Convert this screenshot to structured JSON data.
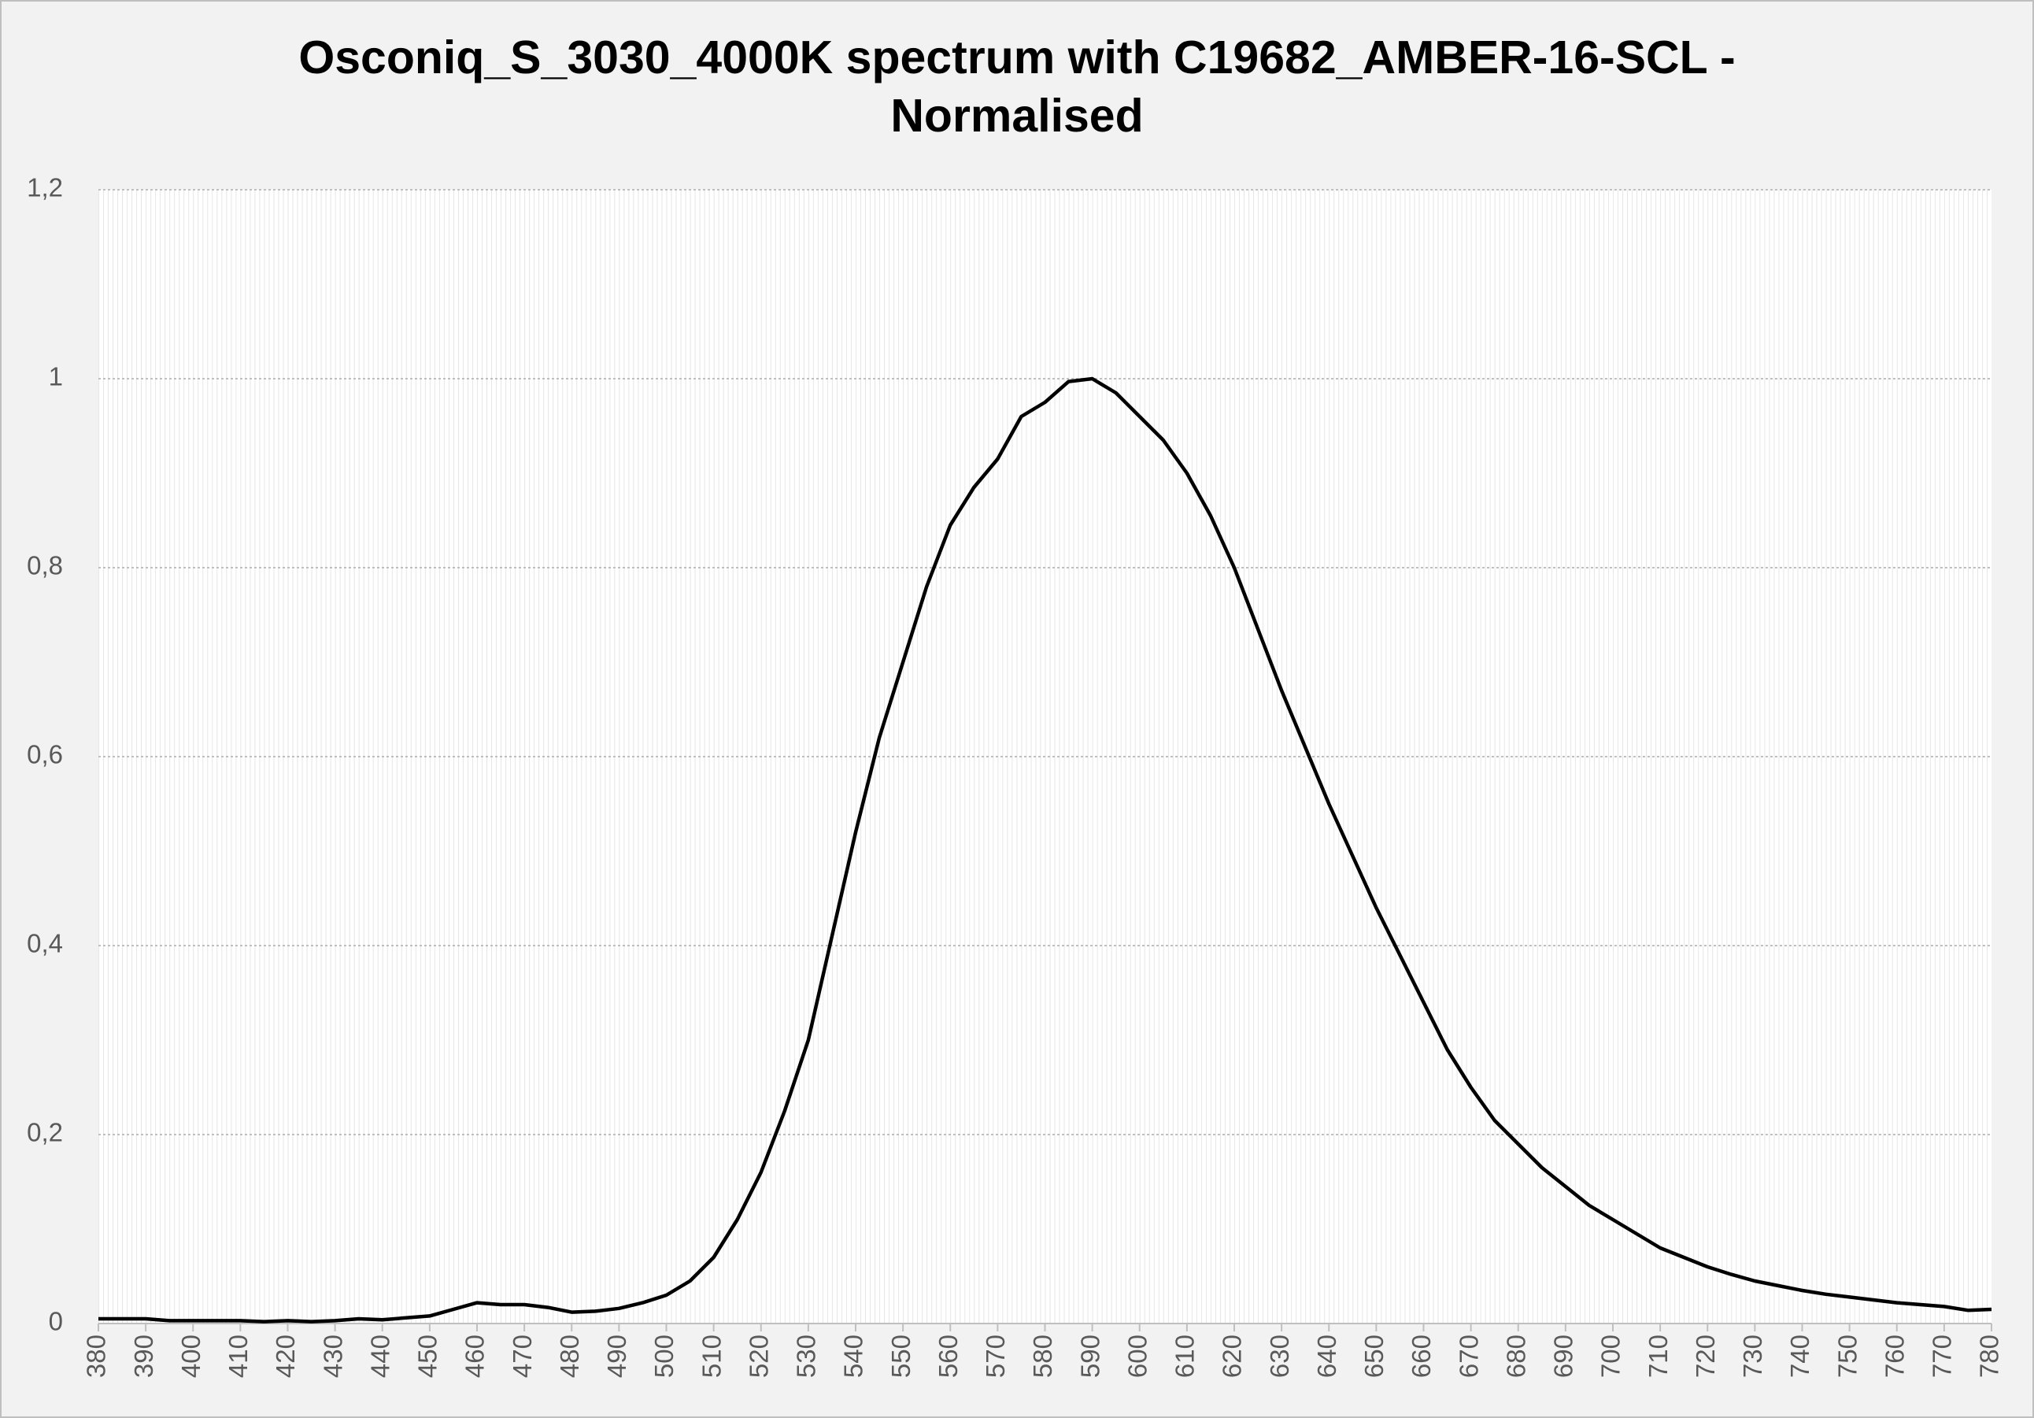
{
  "chart_data": {
    "type": "line",
    "title": "Osconiq_S_3030_4000K spectrum with C19682_AMBER-16-SCL - Normalised",
    "x": [
      380,
      385,
      390,
      395,
      400,
      405,
      410,
      415,
      420,
      425,
      430,
      435,
      440,
      445,
      450,
      455,
      460,
      465,
      470,
      475,
      480,
      485,
      490,
      495,
      500,
      505,
      510,
      515,
      520,
      525,
      530,
      535,
      540,
      545,
      550,
      555,
      560,
      565,
      570,
      575,
      580,
      585,
      590,
      595,
      600,
      605,
      610,
      615,
      620,
      625,
      630,
      635,
      640,
      645,
      650,
      655,
      660,
      665,
      670,
      675,
      680,
      685,
      690,
      695,
      700,
      705,
      710,
      715,
      720,
      725,
      730,
      735,
      740,
      745,
      750,
      755,
      760,
      765,
      770,
      775,
      780
    ],
    "series": [
      {
        "color": "#000000",
        "values": [
          0.005,
          0.005,
          0.005,
          0.003,
          0.003,
          0.003,
          0.003,
          0.002,
          0.003,
          0.002,
          0.003,
          0.005,
          0.004,
          0.006,
          0.008,
          0.015,
          0.022,
          0.02,
          0.02,
          0.017,
          0.012,
          0.013,
          0.016,
          0.022,
          0.03,
          0.045,
          0.07,
          0.11,
          0.16,
          0.225,
          0.3,
          0.41,
          0.52,
          0.62,
          0.7,
          0.78,
          0.845,
          0.885,
          0.915,
          0.96,
          0.975,
          0.997,
          1.0,
          0.985,
          0.96,
          0.935,
          0.9,
          0.855,
          0.8,
          0.735,
          0.67,
          0.61,
          0.55,
          0.495,
          0.44,
          0.39,
          0.34,
          0.29,
          0.25,
          0.215,
          0.19,
          0.165,
          0.145,
          0.125,
          0.11,
          0.095,
          0.08,
          0.07,
          0.06,
          0.052,
          0.045,
          0.04,
          0.035,
          0.031,
          0.028,
          0.025,
          0.022,
          0.02,
          0.018,
          0.014,
          0.015
        ]
      }
    ],
    "xlim": [
      380,
      780
    ],
    "xticks": [
      380,
      390,
      400,
      410,
      420,
      430,
      440,
      450,
      460,
      470,
      480,
      490,
      500,
      510,
      520,
      530,
      540,
      550,
      560,
      570,
      580,
      590,
      600,
      610,
      620,
      630,
      640,
      650,
      660,
      670,
      680,
      690,
      700,
      710,
      720,
      730,
      740,
      750,
      760,
      770,
      780
    ],
    "ylim": [
      0,
      1.2
    ],
    "yticks": [
      0,
      {
        "value": 0.2,
        "label": "0,2"
      },
      {
        "value": 0.4,
        "label": "0,4"
      },
      {
        "value": 0.6,
        "label": "0,6"
      },
      {
        "value": 0.8,
        "label": "0,8"
      },
      1,
      {
        "value": 1.2,
        "label": "1,2"
      }
    ],
    "grid": true
  }
}
